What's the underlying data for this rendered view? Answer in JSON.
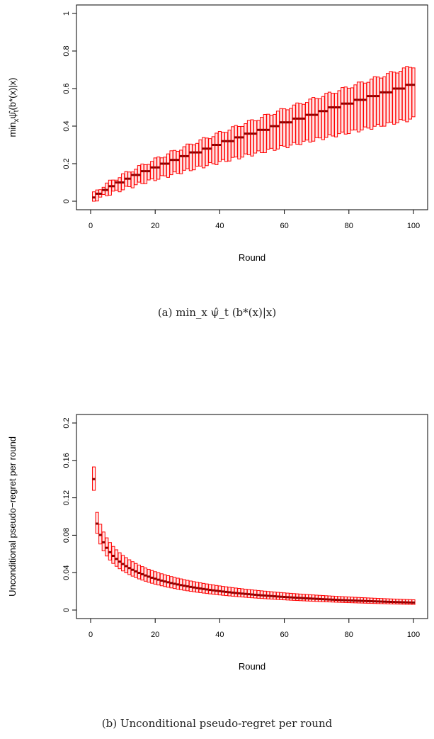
{
  "chart_data": [
    {
      "type": "boxplot",
      "xlabel": "Round",
      "ylabel": "min_x ψ̂_t(b*(x)|x)",
      "ylabel_main": "min",
      "ylabel_sub": "x",
      "ylabel_rest": "ψ̂",
      "ylabel_sub2": "t",
      "ylabel_tail": "(b*(x)|x)",
      "caption": "(a) min_x ψ̂_t (b*(x)|x)",
      "xlim": [
        0,
        100
      ],
      "ylim": [
        0,
        1
      ],
      "xticks": [
        "0",
        "20",
        "40",
        "60",
        "80",
        "100"
      ],
      "yticks": [
        "0",
        "0.2",
        "0.4",
        "0.6",
        "0.8",
        "1"
      ],
      "box_color": "#ff0000",
      "median_color": "#8b0000",
      "rounds": [
        1,
        100
      ],
      "median_start": 0.02,
      "median_end": 0.62,
      "lower_start": 0.0,
      "lower_end": 0.44,
      "upper_start": 0.04,
      "upper_end": 0.72,
      "median_curve": "linear-step-0.02"
    },
    {
      "type": "boxplot",
      "xlabel": "Round",
      "ylabel": "Unconditional pseudo−regret per round",
      "caption": "(b) Unconditional pseudo-regret per round",
      "xlim": [
        0,
        100
      ],
      "ylim": [
        0,
        0.2
      ],
      "xticks": [
        "0",
        "20",
        "40",
        "60",
        "80",
        "100"
      ],
      "yticks": [
        "0",
        "0.04",
        "0.08",
        "0.12",
        "0.16",
        "0.2"
      ],
      "box_color": "#ff0000",
      "median_color": "#8b0000",
      "rounds": [
        1,
        100
      ],
      "median_start": 0.14,
      "median_end": 0.008,
      "lower_start": 0.128,
      "lower_end": 0.006,
      "upper_start": 0.153,
      "upper_end": 0.011,
      "median_curve": "decay"
    }
  ]
}
